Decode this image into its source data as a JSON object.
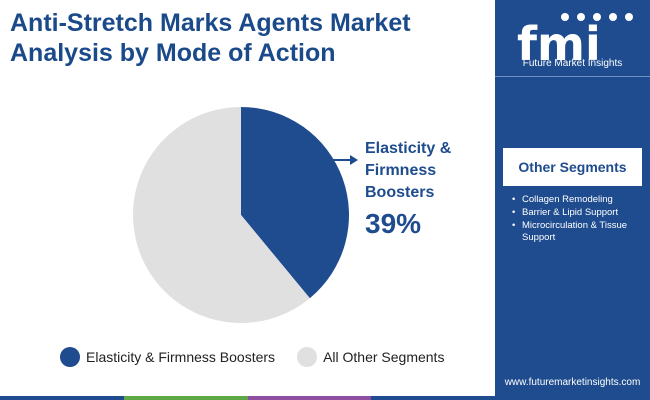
{
  "header": {
    "title": "Anti-Stretch Marks Agents Market Analysis by Mode of Action"
  },
  "brand": {
    "logo_text": "fmi",
    "name": "Future Market Insights",
    "website": "www.futuremarketinsights.com"
  },
  "sidebar": {
    "heading": "Other Segments",
    "items": [
      "Collagen Remodeling",
      "Barrier & Lipid Support",
      "Microcirculation & Tissue Support"
    ]
  },
  "callout": {
    "label": "Elasticity & Firmness Boosters",
    "value": "39%"
  },
  "chart_data": {
    "type": "pie",
    "slices": [
      {
        "label": "Elasticity & Firmness Boosters",
        "value": 39,
        "color": "#1e4c8e"
      },
      {
        "label": "All Other Segments",
        "value": 61,
        "color": "#e0e0e0"
      }
    ],
    "legend_position": "bottom"
  },
  "colors": {
    "brand": "#1e4c8e",
    "title": "#1b4a8a",
    "other": "#e0e0e0",
    "bottom_bar": [
      "#1e4c8e",
      "#5fa847",
      "#8e4fa1",
      "#1e4c8e"
    ]
  }
}
